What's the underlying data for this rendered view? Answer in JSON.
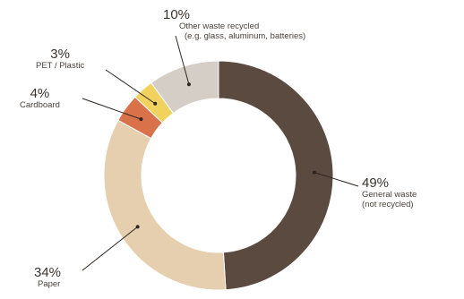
{
  "chart_data": {
    "type": "pie",
    "variant": "donut",
    "title": "",
    "slices": [
      {
        "label_pct": "49%",
        "value": 49,
        "name": "General waste",
        "sub": "(not recycled)",
        "color": "#5b4a3f"
      },
      {
        "label_pct": "34%",
        "value": 34,
        "name": "Paper",
        "sub": "",
        "color": "#e6cfae"
      },
      {
        "label_pct": "4%",
        "value": 4,
        "name": "Cardboard",
        "sub": "",
        "color": "#d9714a"
      },
      {
        "label_pct": "3%",
        "value": 3,
        "name": "PET / Plastic",
        "sub": "",
        "color": "#f1d25f"
      },
      {
        "label_pct": "10%",
        "value": 10,
        "name": "Other waste recycled",
        "sub": "(e.g. glass, aluminum, batteries)",
        "color": "#d4cec6"
      }
    ]
  }
}
